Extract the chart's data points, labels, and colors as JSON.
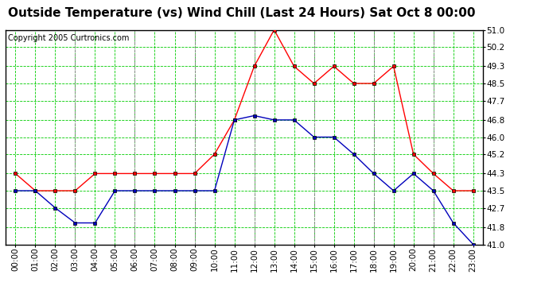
{
  "title": "Outside Temperature (vs) Wind Chill (Last 24 Hours) Sat Oct 8 00:00",
  "copyright": "Copyright 2005 Curtronics.com",
  "hours": [
    "00:00",
    "01:00",
    "02:00",
    "03:00",
    "04:00",
    "05:00",
    "06:00",
    "07:00",
    "08:00",
    "09:00",
    "10:00",
    "11:00",
    "12:00",
    "13:00",
    "14:00",
    "15:00",
    "16:00",
    "17:00",
    "18:00",
    "19:00",
    "20:00",
    "21:00",
    "22:00",
    "23:00"
  ],
  "outside_temp": [
    44.3,
    43.5,
    43.5,
    43.5,
    44.3,
    44.3,
    44.3,
    44.3,
    44.3,
    44.3,
    45.2,
    46.8,
    49.3,
    51.0,
    49.3,
    48.5,
    49.3,
    48.5,
    48.5,
    49.3,
    45.2,
    44.3,
    43.5,
    43.5
  ],
  "wind_chill": [
    43.5,
    43.5,
    42.7,
    42.0,
    42.0,
    43.5,
    43.5,
    43.5,
    43.5,
    43.5,
    43.5,
    46.8,
    47.0,
    46.8,
    46.8,
    46.0,
    46.0,
    45.2,
    44.3,
    43.5,
    44.3,
    43.5,
    42.0,
    41.0
  ],
  "temp_color": "#ff0000",
  "wind_color": "#0000bb",
  "bg_color": "#ffffff",
  "grid_color": "#00cc00",
  "ylim_min": 41.0,
  "ylim_max": 51.0,
  "yticks": [
    41.0,
    41.8,
    42.7,
    43.5,
    44.3,
    45.2,
    46.0,
    46.8,
    47.7,
    48.5,
    49.3,
    50.2,
    51.0
  ],
  "title_fontsize": 11,
  "copyright_fontsize": 7,
  "tick_fontsize": 7.5,
  "gray_vlines": [
    3,
    6,
    9,
    12,
    15,
    18,
    21
  ]
}
